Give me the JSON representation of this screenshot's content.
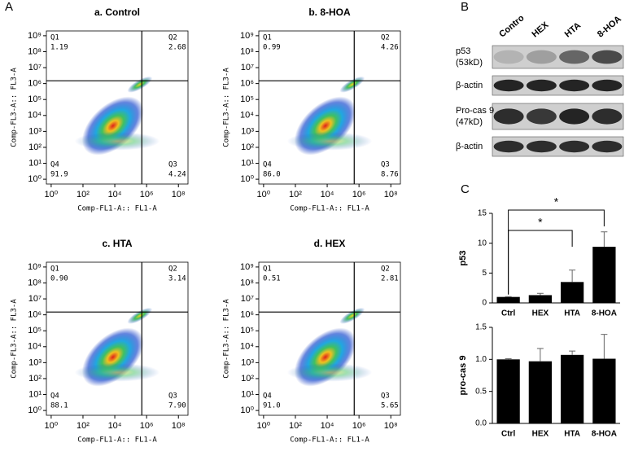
{
  "panels": [
    "A",
    "B",
    "C"
  ],
  "chart_data": [
    {
      "type": "flow",
      "title": "a. Control",
      "x_label": "Comp-FL1-A:: FL1-A",
      "y_label": "Comp-FL3-A:: FL3-A",
      "log_scale": true,
      "xlim": [
        0.5,
        400000000
      ],
      "ylim": [
        0.5,
        2000000000
      ],
      "xticks": [
        {
          "value": 1,
          "label": "10⁰"
        },
        {
          "value": 100,
          "label": "10²"
        },
        {
          "value": 10000,
          "label": "10⁴"
        },
        {
          "value": 1000000,
          "label": "10⁶"
        },
        {
          "value": 100000000,
          "label": "10⁸"
        }
      ],
      "yticks": [
        {
          "value": 1,
          "label": "10⁰"
        },
        {
          "value": 10,
          "label": "10¹"
        },
        {
          "value": 100,
          "label": "10²"
        },
        {
          "value": 1000,
          "label": "10³"
        },
        {
          "value": 10000,
          "label": "10⁴"
        },
        {
          "value": 100000,
          "label": "10⁵"
        },
        {
          "value": 1000000,
          "label": "10⁶"
        },
        {
          "value": 10000000,
          "label": "10⁷"
        },
        {
          "value": 100000000,
          "label": "10⁸"
        },
        {
          "value": 1000000000,
          "label": "10⁹"
        }
      ],
      "gate": [
        500000,
        1500000
      ],
      "quadrants": {
        "names": [
          "Q1",
          "Q2",
          "Q3",
          "Q4"
        ],
        "values": [
          1.19,
          2.68,
          4.24,
          91.9
        ],
        "value_labels": [
          "1.19",
          "2.68",
          "4.24",
          "91.9"
        ]
      }
    },
    {
      "type": "flow",
      "title": "b. 8-HOA",
      "x_label": "Comp-FL1-A:: FL1-A",
      "y_label": "Comp-FL3-A:: FL3-A",
      "log_scale": true,
      "xlim": [
        0.5,
        400000000
      ],
      "ylim": [
        0.5,
        2000000000
      ],
      "xticks": [
        {
          "value": 1,
          "label": "10⁰"
        },
        {
          "value": 100,
          "label": "10²"
        },
        {
          "value": 10000,
          "label": "10⁴"
        },
        {
          "value": 1000000,
          "label": "10⁶"
        },
        {
          "value": 100000000,
          "label": "10⁸"
        }
      ],
      "yticks": [
        {
          "value": 1,
          "label": "10⁰"
        },
        {
          "value": 10,
          "label": "10¹"
        },
        {
          "value": 100,
          "label": "10²"
        },
        {
          "value": 1000,
          "label": "10³"
        },
        {
          "value": 10000,
          "label": "10⁴"
        },
        {
          "value": 100000,
          "label": "10⁵"
        },
        {
          "value": 1000000,
          "label": "10⁶"
        },
        {
          "value": 10000000,
          "label": "10⁷"
        },
        {
          "value": 100000000,
          "label": "10⁸"
        },
        {
          "value": 1000000000,
          "label": "10⁹"
        }
      ],
      "gate": [
        500000,
        1500000
      ],
      "quadrants": {
        "names": [
          "Q1",
          "Q2",
          "Q3",
          "Q4"
        ],
        "values": [
          0.99,
          4.26,
          8.76,
          86
        ],
        "value_labels": [
          "0.99",
          "4.26",
          "8.76",
          "86.0"
        ]
      }
    },
    {
      "type": "flow",
      "title": "c. HTA",
      "x_label": "Comp-FL1-A:: FL1-A",
      "y_label": "Comp-FL3-A:: FL3-A",
      "log_scale": true,
      "xlim": [
        0.5,
        400000000
      ],
      "ylim": [
        0.5,
        2000000000
      ],
      "xticks": [
        {
          "value": 1,
          "label": "10⁰"
        },
        {
          "value": 100,
          "label": "10²"
        },
        {
          "value": 10000,
          "label": "10⁴"
        },
        {
          "value": 1000000,
          "label": "10⁶"
        },
        {
          "value": 100000000,
          "label": "10⁸"
        }
      ],
      "yticks": [
        {
          "value": 1,
          "label": "10⁰"
        },
        {
          "value": 10,
          "label": "10¹"
        },
        {
          "value": 100,
          "label": "10²"
        },
        {
          "value": 1000,
          "label": "10³"
        },
        {
          "value": 10000,
          "label": "10⁴"
        },
        {
          "value": 100000,
          "label": "10⁵"
        },
        {
          "value": 1000000,
          "label": "10⁶"
        },
        {
          "value": 10000000,
          "label": "10⁷"
        },
        {
          "value": 100000000,
          "label": "10⁸"
        },
        {
          "value": 1000000000,
          "label": "10⁹"
        }
      ],
      "gate": [
        500000,
        1500000
      ],
      "quadrants": {
        "names": [
          "Q1",
          "Q2",
          "Q3",
          "Q4"
        ],
        "values": [
          0.9,
          3.14,
          7.9,
          88.1
        ],
        "value_labels": [
          "0.90",
          "3.14",
          "7.90",
          "88.1"
        ]
      }
    },
    {
      "type": "flow",
      "title": "d. HEX",
      "x_label": "Comp-FL1-A:: FL1-A",
      "y_label": "Comp-FL3-A:: FL3-A",
      "log_scale": true,
      "xlim": [
        0.5,
        400000000
      ],
      "ylim": [
        0.5,
        2000000000
      ],
      "xticks": [
        {
          "value": 1,
          "label": "10⁰"
        },
        {
          "value": 100,
          "label": "10²"
        },
        {
          "value": 10000,
          "label": "10⁴"
        },
        {
          "value": 1000000,
          "label": "10⁶"
        },
        {
          "value": 100000000,
          "label": "10⁸"
        }
      ],
      "yticks": [
        {
          "value": 1,
          "label": "10⁰"
        },
        {
          "value": 10,
          "label": "10¹"
        },
        {
          "value": 100,
          "label": "10²"
        },
        {
          "value": 1000,
          "label": "10³"
        },
        {
          "value": 10000,
          "label": "10⁴"
        },
        {
          "value": 100000,
          "label": "10⁵"
        },
        {
          "value": 1000000,
          "label": "10⁶"
        },
        {
          "value": 10000000,
          "label": "10⁷"
        },
        {
          "value": 100000000,
          "label": "10⁸"
        },
        {
          "value": 1000000000,
          "label": "10⁹"
        }
      ],
      "gate": [
        500000,
        1500000
      ],
      "quadrants": {
        "names": [
          "Q1",
          "Q2",
          "Q3",
          "Q4"
        ],
        "values": [
          0.51,
          2.81,
          5.65,
          91
        ],
        "value_labels": [
          "0.51",
          "2.81",
          "5.65",
          "91.0"
        ]
      }
    },
    {
      "type": "blot",
      "lanes": [
        "Contro",
        "HEX",
        "HTA",
        "8-HOA"
      ],
      "rows": [
        [
          "p53",
          "(53kD)"
        ],
        [
          "β-actin"
        ],
        [
          "Pro-cas 9",
          "(47kD)"
        ],
        [
          "β-actin"
        ]
      ]
    },
    {
      "type": "bar",
      "y_label": "p53",
      "categories": [
        "Ctrl",
        "HEX",
        "HTA",
        "8-HOA"
      ],
      "values": [
        1,
        1.3,
        3.5,
        9.4
      ],
      "errors": [
        0.05,
        0.3,
        2,
        2.5
      ],
      "color": "#000000",
      "ylim": [
        0,
        15
      ],
      "yticks": [
        0,
        5,
        10,
        15
      ],
      "significance": [
        {
          "label": "*",
          "pair": [
            "Ctrl",
            "8-HOA"
          ]
        },
        {
          "label": "*",
          "pair": [
            "Ctrl",
            "HTA"
          ]
        }
      ]
    },
    {
      "type": "bar",
      "y_label": "pro-cas 9",
      "categories": [
        "Ctrl",
        "HEX",
        "HTA",
        "8-HOA"
      ],
      "values": [
        1,
        0.97,
        1.07,
        1.01
      ],
      "errors": [
        0.01,
        0.2,
        0.06,
        0.38
      ],
      "color": "#000000",
      "ylim": [
        0,
        1.5
      ],
      "yticks": [
        {
          "value": 0,
          "label": "0.0"
        },
        {
          "value": 0.5,
          "label": "0.5"
        },
        {
          "value": 1,
          "label": "1.0"
        },
        {
          "value": 1.5,
          "label": "1.5"
        }
      ]
    }
  ]
}
